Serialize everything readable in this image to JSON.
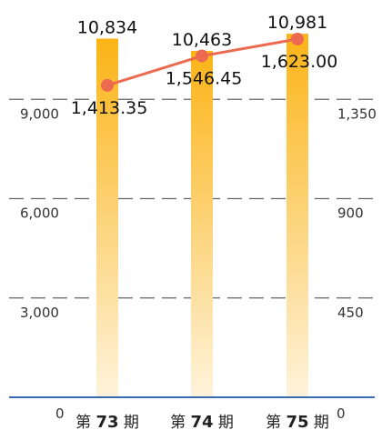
{
  "chart_data": {
    "type": "bar",
    "categories": [
      {
        "prefix": "第 ",
        "number": "73",
        "suffix": " 期"
      },
      {
        "prefix": "第 ",
        "number": "74",
        "suffix": " 期"
      },
      {
        "prefix": "第 ",
        "number": "75",
        "suffix": " 期"
      }
    ],
    "series": [
      {
        "kind": "bar",
        "axis": "left",
        "values": [
          10834,
          10463,
          10981
        ],
        "labels": [
          "10,834",
          "10,463",
          "10,981"
        ],
        "color_top": "#FBB417",
        "color_bottom": "#FEF3DB"
      },
      {
        "kind": "line",
        "axis": "right",
        "values": [
          1413.35,
          1546.45,
          1623.0
        ],
        "labels": [
          "1,413.35",
          "1,546.45",
          "1,623.00"
        ],
        "color": "#EC6A50"
      }
    ],
    "left_axis": {
      "ylim": [
        0,
        12000
      ],
      "ticks": [
        0,
        3000,
        6000,
        9000
      ],
      "tick_labels": [
        "0",
        "3,000",
        "6,000",
        "9,000"
      ]
    },
    "right_axis": {
      "ylim": [
        0,
        1800
      ],
      "ticks": [
        0,
        450,
        900,
        1350
      ],
      "tick_labels": [
        "0",
        "450",
        "900",
        "1,350"
      ]
    },
    "grid": "dashed horizontal",
    "baseline_color": "#3A6DB0",
    "grid_color": "#666666"
  }
}
